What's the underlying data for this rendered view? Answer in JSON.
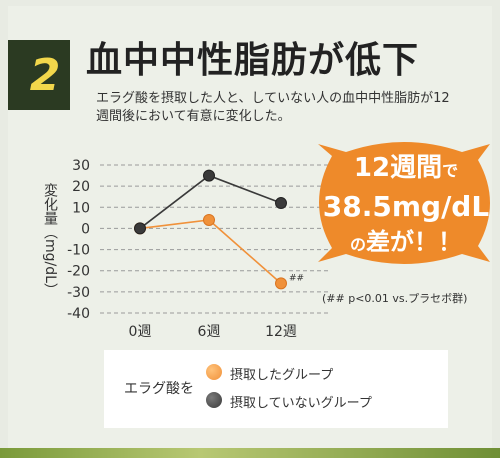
{
  "badge": {
    "number": "2"
  },
  "title": "血中中性脂肪が低下",
  "subtitle": "エラグ酸を摂取した人と、していない人の血中中性脂肪が12週間後において有意に変化した。",
  "callout": {
    "line1_main": "12週間",
    "line1_suffix": "で",
    "line2": "38.5mg/dL",
    "line3_prefix": "の",
    "line3_main": "差が！！"
  },
  "annotation": "(## p<0.01 vs.プラセボ群)",
  "legend": {
    "label": "エラグ酸を",
    "items": [
      {
        "name": "摂取したグループ",
        "color": "#f0913a"
      },
      {
        "name": "摂取していないグループ",
        "color": "#3a3a3a"
      }
    ]
  },
  "chart_data": {
    "type": "line",
    "categories": [
      "0週",
      "6週",
      "12週"
    ],
    "ylabel": "変化量（mg/dL）",
    "ylim": [
      -40,
      30
    ],
    "yticks": [
      "30",
      "20",
      "10",
      "0",
      "-10",
      "-20",
      "-30",
      "-40"
    ],
    "grid": true,
    "series": [
      {
        "name": "摂取したグループ",
        "values": [
          0,
          4,
          -26
        ],
        "color": "#f0913a",
        "marker_note": "##"
      },
      {
        "name": "摂取していないグループ",
        "values": [
          0,
          25,
          12
        ],
        "color": "#3a3a3a"
      }
    ]
  }
}
